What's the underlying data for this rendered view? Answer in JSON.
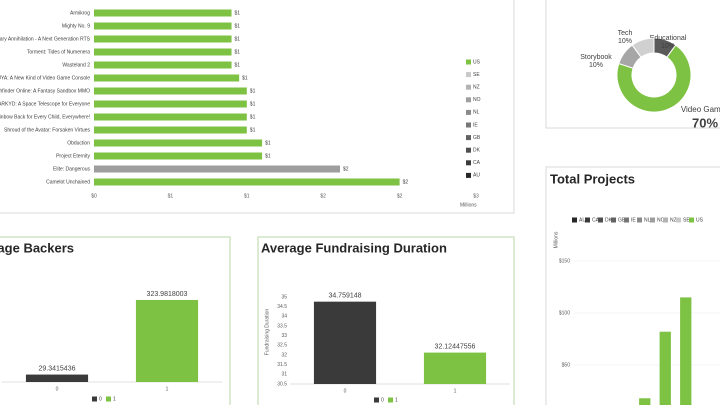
{
  "chart_data": [
    {
      "type": "bar",
      "orientation": "horizontal",
      "categories": [
        "Armikrog",
        "Mighty No. 9",
        "ometary Annihilation - A Next Generation RTS",
        "Torment: Tides of Numenera",
        "Wasteland 2",
        "OUYA: A New Kind of Video Game Console",
        "Pathfinder Online: A Fantasy Sandbox MMO",
        "ARKYD: A Space Telescope for Everyone",
        "g Rainbow Back for Every Child, Everywhere!",
        "Shroud of the Avatar: Forsaken Virtues",
        "Obduction",
        "Project Eternity",
        "Elite: Dangerous",
        "Camelot Unchained"
      ],
      "values": [
        0.9,
        0.9,
        0.9,
        0.9,
        0.9,
        0.95,
        1.0,
        1.0,
        1.0,
        1.0,
        1.1,
        1.1,
        1.61,
        2.0
      ],
      "value_labels": [
        "$1",
        "$1",
        "$1",
        "$1",
        "$1",
        "$1",
        "$1",
        "$1",
        "$1",
        "$1",
        "$1",
        "$1",
        "$2",
        "$2"
      ],
      "colors": [
        "#7dc242",
        "#7dc242",
        "#7dc242",
        "#7dc242",
        "#7dc242",
        "#7dc242",
        "#7dc242",
        "#7dc242",
        "#7dc242",
        "#7dc242",
        "#7dc242",
        "#7dc242",
        "#9e9e9e",
        "#7dc242"
      ],
      "xlim": [
        0,
        2.5
      ],
      "xticks": [
        {
          "value": 0,
          "label": "$0"
        },
        {
          "value": 0.5,
          "label": "$1"
        },
        {
          "value": 1,
          "label": "$1"
        },
        {
          "value": 1.5,
          "label": "$2"
        },
        {
          "value": 2,
          "label": "$2"
        },
        {
          "value": 2.5,
          "label": "$3"
        }
      ],
      "x_label": "Millions",
      "legend": [
        {
          "name": "US",
          "color": "#7dc242"
        },
        {
          "name": "SE",
          "color": "#c8c8c8"
        },
        {
          "name": "NZ",
          "color": "#b3b3b3"
        },
        {
          "name": "NO",
          "color": "#9e9e9e"
        },
        {
          "name": "NL",
          "color": "#8a8a8a"
        },
        {
          "name": "IE",
          "color": "#767676"
        },
        {
          "name": "GB",
          "color": "#626262"
        },
        {
          "name": "DK",
          "color": "#4e4e4e"
        },
        {
          "name": "CA",
          "color": "#3a3a3a"
        },
        {
          "name": "AU",
          "color": "#262626"
        }
      ]
    },
    {
      "type": "pie",
      "donut": true,
      "categories": [
        "Educational",
        "Video Games",
        "Storybook",
        "Tech"
      ],
      "values": [
        10,
        70,
        10,
        10
      ],
      "value_labels": [
        "10%",
        "70%",
        "10%",
        "10%"
      ],
      "colors": [
        "#5a5a5a",
        "#7dc242",
        "#a6a6a6",
        "#d0d0d0"
      ]
    },
    {
      "type": "bar",
      "title": "Total Projects",
      "categories": [
        null,
        null,
        null
      ],
      "series": [
        {
          "name": "US",
          "color": "#7dc242",
          "values": [
            18,
            82,
            115
          ]
        }
      ],
      "ylim": [
        0,
        200
      ],
      "yticks": [
        {
          "value": 50,
          "label": "$50"
        },
        {
          "value": 100,
          "label": "$100"
        },
        {
          "value": 150,
          "label": "$150"
        }
      ],
      "y_label": "Millions",
      "grid": true,
      "legend": [
        {
          "name": "AU",
          "color": "#262626"
        },
        {
          "name": "CA",
          "color": "#3a3a3a"
        },
        {
          "name": "DK",
          "color": "#4e4e4e"
        },
        {
          "name": "GB",
          "color": "#626262"
        },
        {
          "name": "IE",
          "color": "#767676"
        },
        {
          "name": "NL",
          "color": "#8a8a8a"
        },
        {
          "name": "NO",
          "color": "#9e9e9e"
        },
        {
          "name": "NZ",
          "color": "#b3b3b3"
        },
        {
          "name": "SE",
          "color": "#c8c8c8"
        },
        {
          "name": "US",
          "color": "#7dc242"
        }
      ]
    },
    {
      "type": "bar",
      "title": "Average Backers",
      "categories": [
        "0",
        "1"
      ],
      "values": [
        29.3415436,
        323.9818003
      ],
      "value_labels": [
        "29.3415436",
        "323.9818003"
      ],
      "colors": [
        "#3a3a3a",
        "#7dc242"
      ],
      "ylim": [
        0,
        350
      ],
      "legend": [
        {
          "name": "0",
          "color": "#3a3a3a"
        },
        {
          "name": "1",
          "color": "#7dc242"
        }
      ]
    },
    {
      "type": "bar",
      "title": "Average Fundraising Duration",
      "categories": [
        "0",
        "1"
      ],
      "values": [
        34.759148,
        32.12447556
      ],
      "value_labels": [
        "34.759148",
        "32.12447556"
      ],
      "colors": [
        "#3a3a3a",
        "#7dc242"
      ],
      "ylim": [
        30.5,
        35
      ],
      "yticks": [
        30.5,
        31,
        31.5,
        32,
        32.5,
        33,
        33.5,
        34,
        34.5,
        35
      ],
      "y_label": "Fundraising Duration",
      "legend": [
        {
          "name": "0",
          "color": "#3a3a3a"
        },
        {
          "name": "1",
          "color": "#7dc242"
        }
      ]
    }
  ]
}
